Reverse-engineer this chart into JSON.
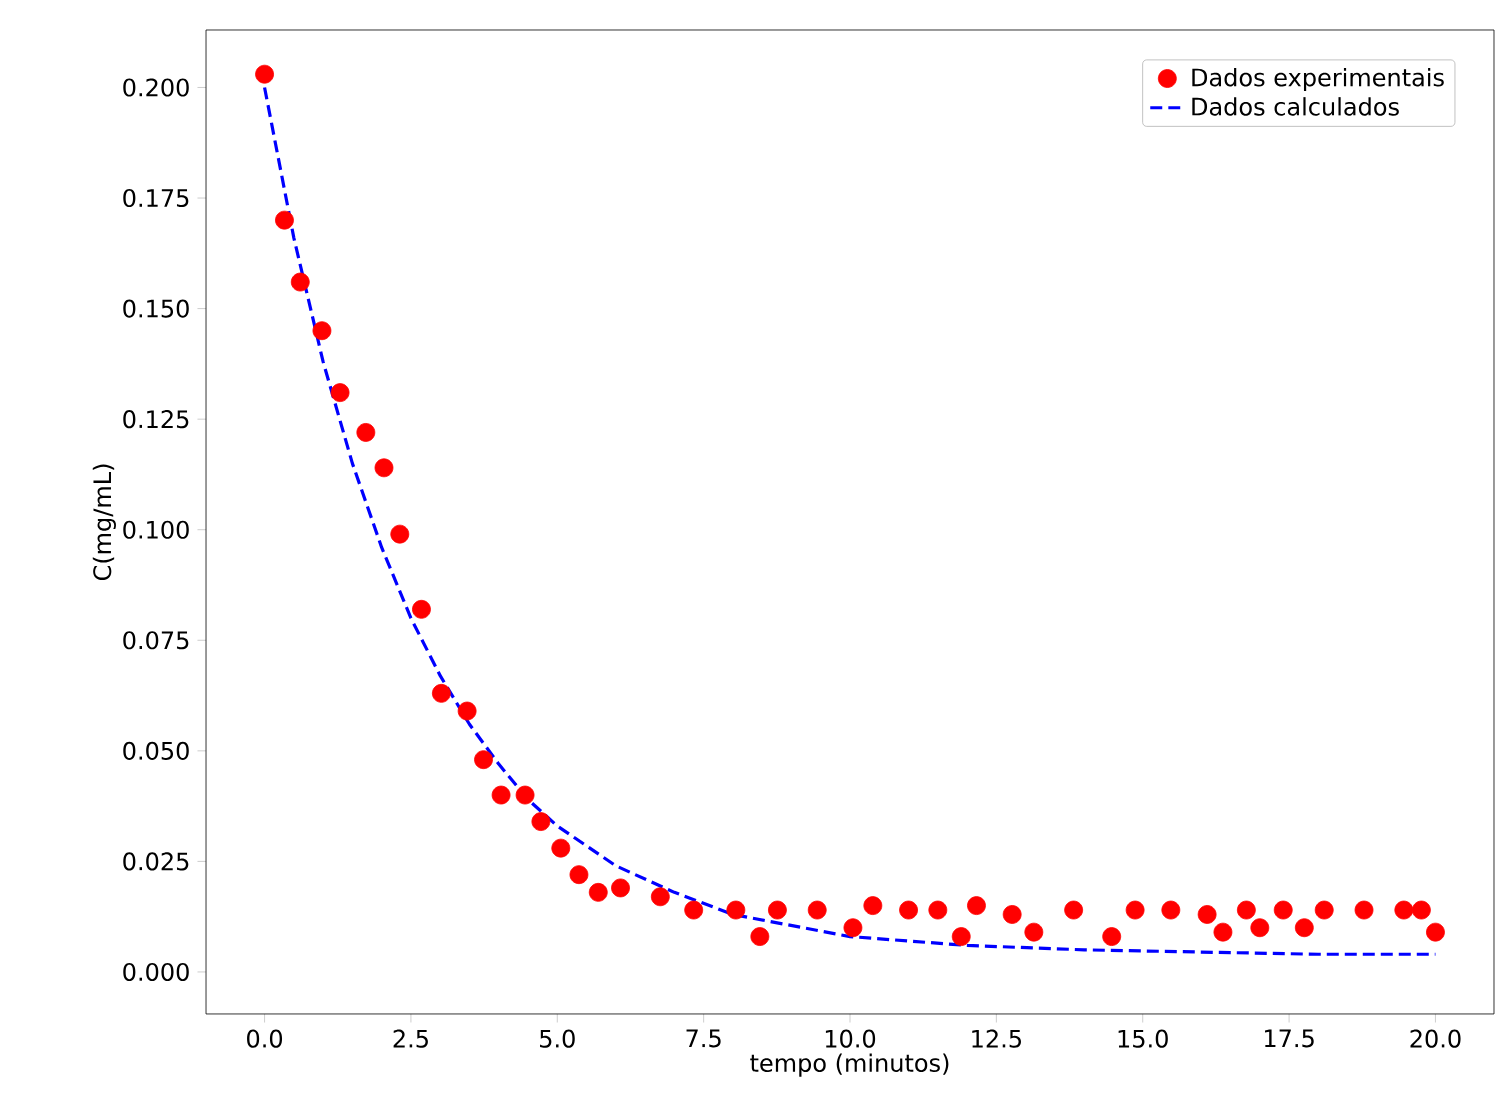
{
  "chart_data": {
    "type": "scatter",
    "xlabel": "tempo (minutos)",
    "ylabel": "C(mg/mL)",
    "xlim": [
      -1,
      21
    ],
    "ylim": [
      -0.0095,
      0.213
    ],
    "xticks": [
      {
        "value": 0,
        "label": "0.0"
      },
      {
        "value": 2.5,
        "label": "2.5"
      },
      {
        "value": 5,
        "label": "5.0"
      },
      {
        "value": 7.5,
        "label": "7.5"
      },
      {
        "value": 10,
        "label": "10.0"
      },
      {
        "value": 12.5,
        "label": "12.5"
      },
      {
        "value": 15,
        "label": "15.0"
      },
      {
        "value": 17.5,
        "label": "17.5"
      },
      {
        "value": 20,
        "label": "20.0"
      }
    ],
    "yticks": [
      {
        "value": 0,
        "label": "0.000"
      },
      {
        "value": 0.025,
        "label": "0.025"
      },
      {
        "value": 0.05,
        "label": "0.050"
      },
      {
        "value": 0.075,
        "label": "0.075"
      },
      {
        "value": 0.1,
        "label": "0.100"
      },
      {
        "value": 0.125,
        "label": "0.125"
      },
      {
        "value": 0.15,
        "label": "0.150"
      },
      {
        "value": 0.175,
        "label": "0.175"
      },
      {
        "value": 0.2,
        "label": "0.200"
      }
    ],
    "legend": "top right",
    "grid": false,
    "series": [
      {
        "name": "Dados experimentais",
        "marker": "circle",
        "color": "#ff0000",
        "x": [
          0,
          0.34,
          0.61,
          0.98,
          1.29,
          1.73,
          2.04,
          2.31,
          2.68,
          3.02,
          3.46,
          3.74,
          4.04,
          4.45,
          4.72,
          5.06,
          5.37,
          5.7,
          6.08,
          6.76,
          7.33,
          8.05,
          8.46,
          8.76,
          9.44,
          10.05,
          10.39,
          11.0,
          11.5,
          11.9,
          12.16,
          12.77,
          13.14,
          13.82,
          14.47,
          14.87,
          15.48,
          16.1,
          16.37,
          16.77,
          17.0,
          17.4,
          17.76,
          18.1,
          18.78,
          19.46,
          19.76,
          20.0
        ],
        "values": [
          0.203,
          0.17,
          0.156,
          0.145,
          0.131,
          0.122,
          0.114,
          0.099,
          0.082,
          0.063,
          0.059,
          0.048,
          0.04,
          0.04,
          0.034,
          0.028,
          0.022,
          0.018,
          0.019,
          0.017,
          0.014,
          0.014,
          0.008,
          0.014,
          0.014,
          0.01,
          0.015,
          0.014,
          0.014,
          0.008,
          0.015,
          0.013,
          0.009,
          0.014,
          0.008,
          0.014,
          0.014,
          0.013,
          0.009,
          0.014,
          0.01,
          0.014,
          0.01,
          0.014,
          0.014,
          0.014,
          0.014,
          0.009
        ]
      },
      {
        "name": "Dados calculados",
        "type": "line",
        "marker": "none",
        "line_style": "dashed",
        "color": "#0000ff",
        "x": [
          0,
          0.5,
          1,
          1.5,
          2,
          2.5,
          3,
          3.5,
          4,
          4.5,
          5,
          6,
          7,
          8,
          10,
          12,
          14,
          16,
          18,
          20
        ],
        "values": [
          0.2,
          0.166,
          0.138,
          0.115,
          0.096,
          0.08,
          0.067,
          0.056,
          0.047,
          0.039,
          0.033,
          0.024,
          0.018,
          0.013,
          0.008,
          0.006,
          0.005,
          0.0045,
          0.004,
          0.004
        ]
      }
    ]
  }
}
